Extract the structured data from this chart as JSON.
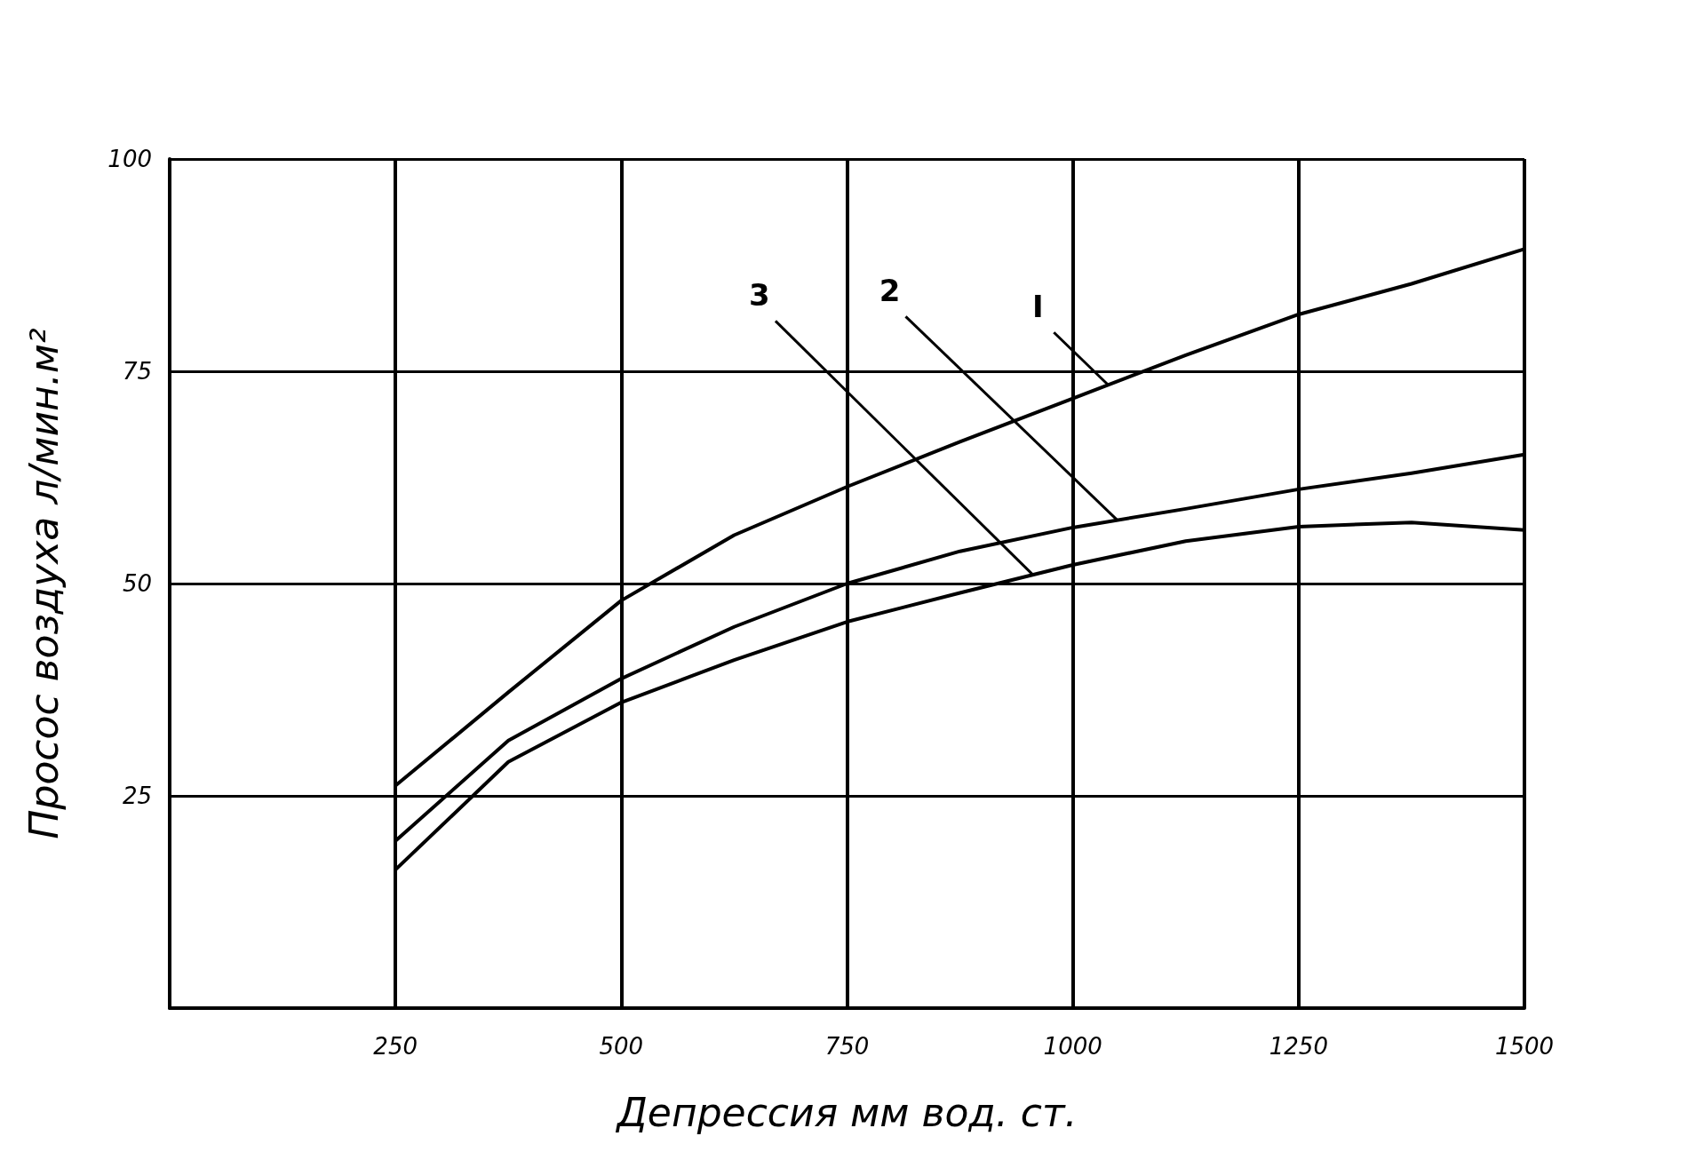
{
  "chart_data": {
    "type": "line",
    "xlabel": "Депрессия мм вод. ст.",
    "ylabel": "Просос воздуха л/мин.м²",
    "x": [
      250,
      375,
      500,
      625,
      750,
      875,
      1000,
      1125,
      1250,
      1375,
      1500
    ],
    "series": [
      {
        "color": "#000000",
        "values": [
          26.2,
          37.2,
          48,
          55.7,
          61.4,
          66.7,
          71.8,
          76.9,
          81.7,
          85.3,
          89.4
        ]
      },
      {
        "color": "#000000",
        "values": [
          19.7,
          31.5,
          38.8,
          44.9,
          50,
          53.8,
          56.6,
          58.8,
          61.1,
          63,
          65.2
        ]
      },
      {
        "color": "#000000",
        "values": [
          16.3,
          29,
          36,
          41,
          45.5,
          48.9,
          52.2,
          55,
          56.7,
          57.2,
          56.3
        ]
      }
    ],
    "xlim": [
      0,
      1500
    ],
    "ylim": [
      0,
      100
    ],
    "xticks": [
      250,
      500,
      750,
      1000,
      1250,
      1500
    ],
    "yticks": [
      25,
      50,
      75,
      100
    ],
    "grid": true,
    "marker": "none",
    "line_style": "solid",
    "annotations": [
      {
        "text": "I",
        "x": 1039,
        "y": 73.4
      },
      {
        "text": "2",
        "x": 1049,
        "y": 57.5
      },
      {
        "text": "3",
        "x": 956,
        "y": 51.0
      }
    ]
  }
}
